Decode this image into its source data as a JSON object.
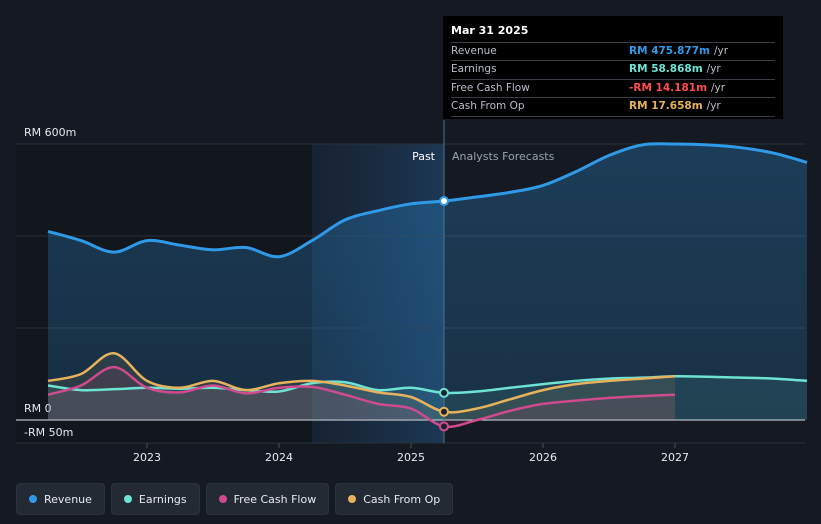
{
  "chart_data": {
    "type": "line",
    "currency_unit": "RM",
    "y_axis_labels": [
      "RM 600m",
      "RM 0",
      "-RM 50m"
    ],
    "y_ticks": [
      600,
      0,
      -50
    ],
    "ylim": [
      -50,
      600
    ],
    "x_tick_labels": [
      "2023",
      "2024",
      "2025",
      "2026",
      "2027"
    ],
    "x_ticks": [
      2023,
      2024,
      2025,
      2026,
      2027
    ],
    "xlim": [
      2022.0,
      2028.0
    ],
    "divider_x": 2025.25,
    "past_label": "Past",
    "forecast_label": "Analysts Forecasts",
    "series": [
      {
        "name": "Revenue",
        "color": "#2f9ae8",
        "x": [
          2022.25,
          2022.5,
          2022.75,
          2023.0,
          2023.25,
          2023.5,
          2023.75,
          2024.0,
          2024.25,
          2024.5,
          2024.75,
          2025.0,
          2025.25,
          2025.5,
          2025.75,
          2026.0,
          2026.25,
          2026.5,
          2026.75,
          2027.0,
          2027.25,
          2027.5,
          2027.75,
          2028.0
        ],
        "values": [
          410,
          390,
          365,
          390,
          380,
          370,
          375,
          355,
          390,
          435,
          455,
          470,
          476,
          485,
          495,
          510,
          540,
          575,
          598,
          600,
          598,
          592,
          580,
          560
        ]
      },
      {
        "name": "Earnings",
        "color": "#6de3d4",
        "x": [
          2022.25,
          2022.5,
          2022.75,
          2023.0,
          2023.25,
          2023.5,
          2023.75,
          2024.0,
          2024.25,
          2024.5,
          2024.75,
          2025.0,
          2025.25,
          2025.5,
          2025.75,
          2026.0,
          2026.25,
          2026.5,
          2026.75,
          2027.0,
          2027.25,
          2027.5,
          2027.75,
          2028.0
        ],
        "values": [
          75,
          65,
          67,
          70,
          68,
          70,
          65,
          62,
          80,
          82,
          65,
          70,
          59,
          62,
          70,
          78,
          85,
          90,
          92,
          95,
          94,
          92,
          90,
          85
        ]
      },
      {
        "name": "Free Cash Flow",
        "color": "#cf4a8e",
        "x": [
          2022.25,
          2022.5,
          2022.75,
          2023.0,
          2023.25,
          2023.5,
          2023.75,
          2024.0,
          2024.25,
          2024.5,
          2024.75,
          2025.0,
          2025.25,
          2025.5,
          2025.75,
          2026.0,
          2026.25,
          2026.5,
          2026.75,
          2027.0
        ],
        "values": [
          55,
          75,
          115,
          70,
          60,
          75,
          58,
          70,
          72,
          55,
          35,
          25,
          -14,
          0,
          20,
          35,
          42,
          48,
          52,
          55
        ]
      },
      {
        "name": "Cash From Op",
        "color": "#e6b25c",
        "x": [
          2022.25,
          2022.5,
          2022.75,
          2023.0,
          2023.25,
          2023.5,
          2023.75,
          2024.0,
          2024.25,
          2024.5,
          2024.75,
          2025.0,
          2025.25,
          2025.5,
          2025.75,
          2026.0,
          2026.25,
          2026.5,
          2026.75,
          2027.0
        ],
        "values": [
          85,
          100,
          145,
          85,
          70,
          85,
          65,
          80,
          85,
          75,
          60,
          50,
          18,
          25,
          45,
          65,
          78,
          85,
          90,
          95
        ]
      }
    ]
  },
  "tooltip": {
    "date": "Mar 31 2025",
    "rows": [
      {
        "label": "Revenue",
        "value": "RM 475.877m",
        "unit": "/yr",
        "color": "#2f9ae8"
      },
      {
        "label": "Earnings",
        "value": "RM 58.868m",
        "unit": "/yr",
        "color": "#6de3d4"
      },
      {
        "label": "Free Cash Flow",
        "value": "-RM 14.181m",
        "unit": "/yr",
        "color": "#ff4d4d"
      },
      {
        "label": "Cash From Op",
        "value": "RM 17.658m",
        "unit": "/yr",
        "color": "#e6b25c"
      }
    ]
  },
  "legend": [
    {
      "label": "Revenue",
      "color": "#2f9ae8"
    },
    {
      "label": "Earnings",
      "color": "#6de3d4"
    },
    {
      "label": "Free Cash Flow",
      "color": "#cf4a8e"
    },
    {
      "label": "Cash From Op",
      "color": "#e6b25c"
    }
  ]
}
